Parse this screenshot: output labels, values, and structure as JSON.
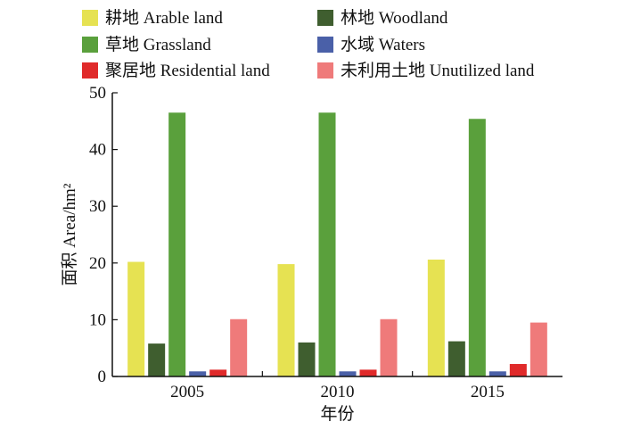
{
  "chart_data": {
    "type": "bar",
    "categories": [
      "2005",
      "2010",
      "2015"
    ],
    "series": [
      {
        "name": "耕地 Arable land",
        "color": "#e6e252",
        "values": [
          20.2,
          19.8,
          20.6
        ]
      },
      {
        "name": "林地 Woodland",
        "color": "#3f5e2f",
        "values": [
          5.8,
          6.0,
          6.2
        ]
      },
      {
        "name": "草地 Grassland",
        "color": "#5aa03c",
        "values": [
          46.5,
          46.5,
          45.4
        ]
      },
      {
        "name": "水域 Waters",
        "color": "#4a60a8",
        "values": [
          0.9,
          0.9,
          0.9
        ]
      },
      {
        "name": "聚居地 Residential land",
        "color": "#e02a2a",
        "values": [
          1.2,
          1.2,
          2.2
        ]
      },
      {
        "name": "未利用土地 Unutilized land",
        "color": "#ef7a7a",
        "values": [
          10.1,
          10.1,
          9.5
        ]
      }
    ],
    "xlabel": "年份",
    "ylabel": "面积 Area/hm²",
    "ylim": [
      0,
      50
    ],
    "yticks": [
      0,
      10,
      20,
      30,
      40,
      50
    ],
    "grid": false,
    "legend": "top"
  }
}
